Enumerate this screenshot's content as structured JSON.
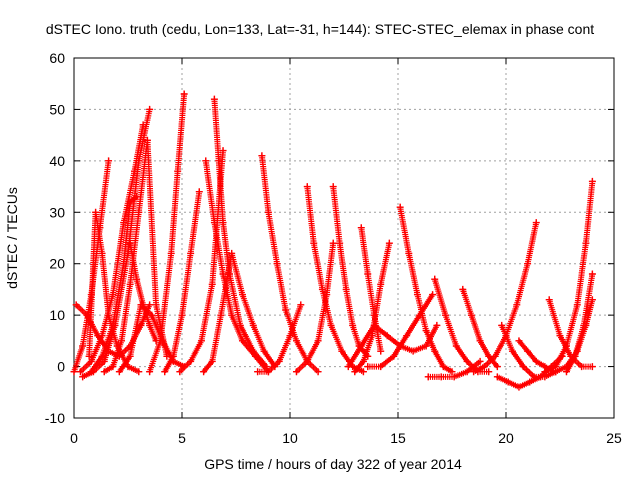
{
  "chart_data": {
    "type": "scatter",
    "title": "dSTEC Iono. truth (cedu, Lon=133, Lat=-31, h=144): STEC-STEC_elemax in phase cont",
    "xlabel": "GPS time / hours of day 322 of year 2014",
    "ylabel": "dSTEC  / TECUs",
    "xlim": [
      0,
      25
    ],
    "ylim": [
      -10,
      60
    ],
    "xticks": [
      "0",
      "5",
      "10",
      "15",
      "20",
      "25"
    ],
    "yticks": [
      "-10",
      "0",
      "10",
      "20",
      "30",
      "40",
      "50",
      "60"
    ],
    "grid": true,
    "marker": "+",
    "color": "#ff0000",
    "series": [
      {
        "x": [
          0.0,
          0.4,
          0.8,
          1.2,
          1.6
        ],
        "y": [
          -1,
          4,
          14,
          27,
          40
        ]
      },
      {
        "x": [
          0.1,
          0.6,
          1.1,
          1.6,
          2.1,
          2.6,
          3.1,
          3.5
        ],
        "y": [
          12,
          10,
          6,
          3,
          2,
          4,
          8,
          12
        ]
      },
      {
        "x": [
          0.4,
          0.9,
          1.4,
          1.9,
          2.5,
          3.0,
          3.5
        ],
        "y": [
          -2,
          -1,
          1,
          8,
          22,
          40,
          50
        ]
      },
      {
        "x": [
          0.7,
          1.0,
          1.3,
          1.6,
          2.0,
          2.5,
          3.0
        ],
        "y": [
          2,
          30,
          22,
          10,
          4,
          0,
          -1
        ]
      },
      {
        "x": [
          0.3,
          0.8,
          1.3,
          1.8,
          2.3,
          2.8,
          3.2
        ],
        "y": [
          -1,
          1,
          6,
          14,
          28,
          38,
          47
        ]
      },
      {
        "x": [
          0.8,
          1.3,
          1.8,
          2.3,
          2.6,
          2.9
        ],
        "y": [
          -1,
          2,
          8,
          20,
          32,
          33
        ]
      },
      {
        "x": [
          1.4,
          1.8,
          2.2,
          2.6,
          3.0,
          3.4,
          3.8,
          4.3
        ],
        "y": [
          -1,
          0,
          5,
          16,
          30,
          44,
          12,
          2
        ]
      },
      {
        "x": [
          2.1,
          2.6,
          3.1,
          3.6,
          4.1,
          4.6,
          5.1
        ],
        "y": [
          -1,
          2,
          12,
          10,
          5,
          1,
          0
        ]
      },
      {
        "x": [
          3.5,
          4.0,
          4.5,
          4.8,
          5.1
        ],
        "y": [
          -1,
          5,
          22,
          38,
          53
        ]
      },
      {
        "x": [
          2.6,
          2.9,
          3.2,
          3.5,
          3.8
        ],
        "y": [
          24,
          17,
          12,
          8,
          5
        ]
      },
      {
        "x": [
          4.2,
          4.6,
          5.0,
          5.4,
          5.8
        ],
        "y": [
          -1,
          2,
          10,
          22,
          34
        ]
      },
      {
        "x": [
          6.1,
          6.5,
          6.9,
          7.3,
          7.8,
          8.4,
          9.0
        ],
        "y": [
          40,
          28,
          18,
          10,
          5,
          2,
          -1
        ]
      },
      {
        "x": [
          6.5,
          6.7,
          6.9,
          7.2,
          7.7,
          8.3,
          8.9
        ],
        "y": [
          52,
          40,
          28,
          18,
          8,
          3,
          0
        ]
      },
      {
        "x": [
          4.9,
          5.4,
          5.9,
          6.4,
          6.9
        ],
        "y": [
          -1,
          1,
          5,
          16,
          42
        ]
      },
      {
        "x": [
          6.0,
          6.4,
          6.8,
          7.3,
          7.8,
          8.3,
          8.8,
          9.3
        ],
        "y": [
          -1,
          1,
          10,
          22,
          14,
          8,
          3,
          0
        ]
      },
      {
        "x": [
          8.7,
          9.0,
          9.4,
          9.8,
          10.3,
          10.8,
          11.3
        ],
        "y": [
          41,
          30,
          20,
          11,
          5,
          1,
          -1
        ]
      },
      {
        "x": [
          8.5,
          9.0,
          9.5,
          10.0,
          10.5
        ],
        "y": [
          -1,
          -1,
          1,
          6,
          12
        ]
      },
      {
        "x": [
          10.8,
          11.1,
          11.5,
          11.9,
          12.4,
          12.9,
          13.4
        ],
        "y": [
          35,
          24,
          15,
          8,
          3,
          0,
          -1
        ]
      },
      {
        "x": [
          10.3,
          10.8,
          11.3,
          11.7,
          12.0
        ],
        "y": [
          -1,
          1,
          5,
          14,
          24
        ]
      },
      {
        "x": [
          12.0,
          12.3,
          12.6,
          12.9,
          13.2,
          13.6
        ],
        "y": [
          35,
          24,
          15,
          8,
          4,
          2
        ]
      },
      {
        "x": [
          13.3,
          13.6,
          13.9,
          14.2
        ],
        "y": [
          27,
          18,
          10,
          3
        ]
      },
      {
        "x": [
          13.0,
          13.4,
          13.8,
          14.2,
          14.6
        ],
        "y": [
          -1,
          1,
          6,
          16,
          24
        ]
      },
      {
        "x": [
          15.1,
          15.5,
          15.9,
          16.3,
          16.7,
          17.1,
          17.5
        ],
        "y": [
          31,
          22,
          14,
          7,
          3,
          0,
          -1
        ]
      },
      {
        "x": [
          13.6,
          14.2,
          14.8,
          15.4,
          16.0,
          16.6
        ],
        "y": [
          0,
          0,
          2,
          6,
          10,
          14
        ]
      },
      {
        "x": [
          12.7,
          13.3,
          13.9,
          14.5,
          15.1,
          15.7,
          16.3,
          16.8
        ],
        "y": [
          0,
          4,
          8,
          6,
          4,
          3,
          4,
          8
        ]
      },
      {
        "x": [
          16.7,
          17.2,
          17.7,
          18.2,
          18.7,
          19.2
        ],
        "y": [
          17,
          10,
          4,
          1,
          -1,
          -1
        ]
      },
      {
        "x": [
          16.4,
          17.0,
          17.6,
          18.2,
          18.8
        ],
        "y": [
          -2,
          -2,
          -2,
          -1,
          1
        ]
      },
      {
        "x": [
          18.0,
          18.4,
          18.8,
          19.2,
          19.6
        ],
        "y": [
          15,
          10,
          5,
          2,
          0
        ]
      },
      {
        "x": [
          18.5,
          19.0,
          19.5,
          20.0,
          20.5,
          21.0,
          21.4
        ],
        "y": [
          -1,
          0,
          2,
          6,
          12,
          20,
          28
        ]
      },
      {
        "x": [
          19.8,
          20.3,
          20.8,
          21.3,
          21.8,
          22.3
        ],
        "y": [
          8,
          3,
          0,
          -2,
          -2,
          -1
        ]
      },
      {
        "x": [
          19.6,
          20.1,
          20.6,
          21.1,
          21.6,
          22.1,
          22.6
        ],
        "y": [
          -2,
          -3,
          -4,
          -3,
          -2,
          0,
          2
        ]
      },
      {
        "x": [
          20.6,
          21.0,
          21.4,
          21.8,
          22.2
        ],
        "y": [
          5,
          3,
          1,
          0,
          -1
        ]
      },
      {
        "x": [
          22.0,
          22.5,
          23.0,
          23.5,
          24.0
        ],
        "y": [
          13,
          6,
          2,
          0,
          0
        ]
      },
      {
        "x": [
          21.8,
          22.3,
          22.8,
          23.3,
          23.7,
          24.0
        ],
        "y": [
          -1,
          0,
          4,
          12,
          24,
          36
        ]
      },
      {
        "x": [
          22.3,
          22.8,
          23.3,
          23.7,
          24.0
        ],
        "y": [
          -1,
          0,
          3,
          8,
          13
        ]
      },
      {
        "x": [
          22.8,
          23.2,
          23.6,
          24.0
        ],
        "y": [
          -1,
          2,
          8,
          18
        ]
      }
    ]
  }
}
